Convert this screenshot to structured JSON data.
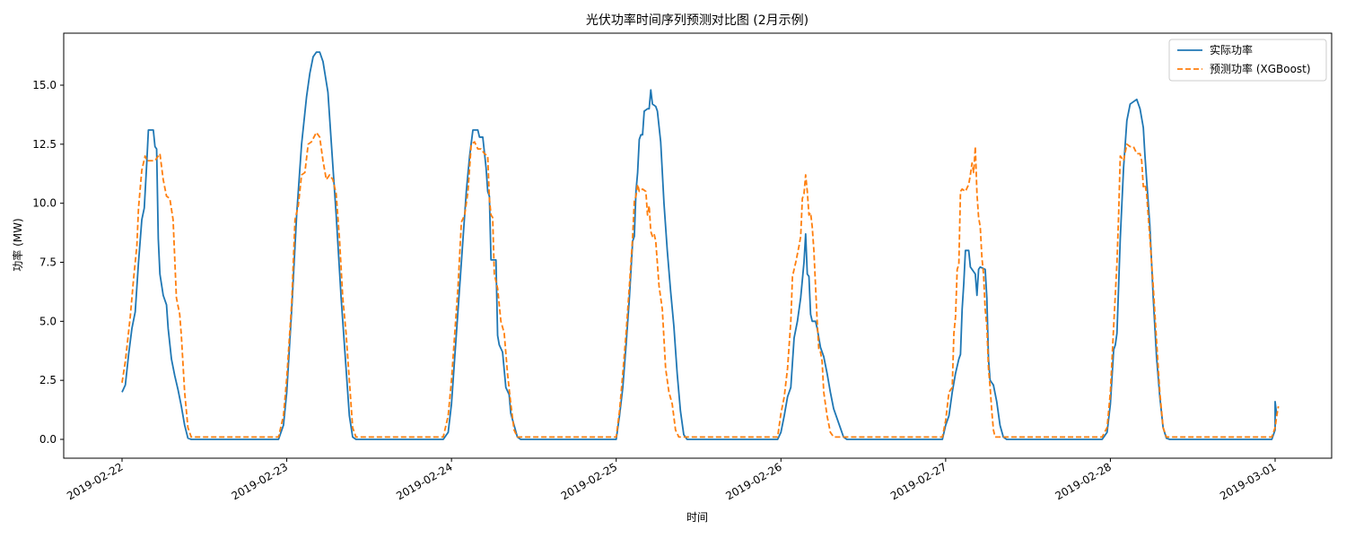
{
  "chart_data": {
    "type": "line",
    "title": "光伏功率时间序列预测对比图 (2月示例)",
    "xlabel": "时间",
    "ylabel": "功率 (MW)",
    "x_ticks": [
      "2019-02-22",
      "2019-02-23",
      "2019-02-24",
      "2019-02-25",
      "2019-02-26",
      "2019-02-27",
      "2019-02-28",
      "2019-03-01"
    ],
    "x_range_days": [
      -0.35,
      7.33
    ],
    "y_ticks": [
      0.0,
      2.5,
      5.0,
      7.5,
      10.0,
      12.5,
      15.0
    ],
    "y_tick_labels": [
      "0.0",
      "2.5",
      "5.0",
      "7.5",
      "10.0",
      "12.5",
      "15.0"
    ],
    "ylim": [
      -0.8,
      17.2
    ],
    "grid": false,
    "legend_position": "upper right",
    "series": [
      {
        "name": "实际功率",
        "color": "#1f77b4",
        "style": "solid",
        "points": [
          [
            0.0,
            2.0
          ],
          [
            0.02,
            2.3
          ],
          [
            0.04,
            3.6
          ],
          [
            0.06,
            4.7
          ],
          [
            0.08,
            5.4
          ],
          [
            0.1,
            7.5
          ],
          [
            0.12,
            9.3
          ],
          [
            0.135,
            9.8
          ],
          [
            0.15,
            11.7
          ],
          [
            0.16,
            13.1
          ],
          [
            0.19,
            13.1
          ],
          [
            0.2,
            12.4
          ],
          [
            0.21,
            12.3
          ],
          [
            0.22,
            8.5
          ],
          [
            0.23,
            7.0
          ],
          [
            0.25,
            6.1
          ],
          [
            0.27,
            5.7
          ],
          [
            0.28,
            4.7
          ],
          [
            0.3,
            3.4
          ],
          [
            0.32,
            2.7
          ],
          [
            0.34,
            2.1
          ],
          [
            0.36,
            1.4
          ],
          [
            0.38,
            0.6
          ],
          [
            0.4,
            0.05
          ],
          [
            0.42,
            0.0
          ],
          [
            0.95,
            0.0
          ],
          [
            0.98,
            0.6
          ],
          [
            1.0,
            2.0
          ],
          [
            1.03,
            5.5
          ],
          [
            1.06,
            9.5
          ],
          [
            1.09,
            12.5
          ],
          [
            1.12,
            14.5
          ],
          [
            1.14,
            15.5
          ],
          [
            1.16,
            16.2
          ],
          [
            1.18,
            16.4
          ],
          [
            1.2,
            16.4
          ],
          [
            1.22,
            16.0
          ],
          [
            1.25,
            14.7
          ],
          [
            1.27,
            12.6
          ],
          [
            1.3,
            9.5
          ],
          [
            1.33,
            6.0
          ],
          [
            1.36,
            3.0
          ],
          [
            1.38,
            1.0
          ],
          [
            1.4,
            0.1
          ],
          [
            1.42,
            0.0
          ],
          [
            1.95,
            0.0
          ],
          [
            1.98,
            0.3
          ],
          [
            2.0,
            1.5
          ],
          [
            2.03,
            4.5
          ],
          [
            2.06,
            7.5
          ],
          [
            2.09,
            10.5
          ],
          [
            2.11,
            12.0
          ],
          [
            2.13,
            13.1
          ],
          [
            2.16,
            13.1
          ],
          [
            2.17,
            12.8
          ],
          [
            2.19,
            12.8
          ],
          [
            2.21,
            11.5
          ],
          [
            2.22,
            10.5
          ],
          [
            2.23,
            10.3
          ],
          [
            2.24,
            7.6
          ],
          [
            2.27,
            7.6
          ],
          [
            2.28,
            4.4
          ],
          [
            2.29,
            4.0
          ],
          [
            2.31,
            3.7
          ],
          [
            2.33,
            2.2
          ],
          [
            2.35,
            1.9
          ],
          [
            2.36,
            1.1
          ],
          [
            2.38,
            0.6
          ],
          [
            2.4,
            0.1
          ],
          [
            2.42,
            0.0
          ],
          [
            0.0,
            0.0
          ]
        ]
      },
      {
        "name": "预测功率 (XGBoost)",
        "color": "#ff7f0e",
        "style": "dashed",
        "points": [
          [
            0.0,
            2.4
          ],
          [
            0.02,
            3.3
          ],
          [
            0.05,
            5.2
          ],
          [
            0.07,
            6.8
          ],
          [
            0.09,
            8.2
          ],
          [
            0.1,
            9.8
          ],
          [
            0.12,
            11.4
          ],
          [
            0.14,
            12.0
          ],
          [
            0.15,
            11.8
          ],
          [
            0.2,
            11.8
          ],
          [
            0.23,
            12.1
          ],
          [
            0.25,
            11.0
          ],
          [
            0.27,
            10.3
          ],
          [
            0.29,
            10.2
          ],
          [
            0.31,
            9.3
          ],
          [
            0.33,
            6.0
          ],
          [
            0.35,
            5.3
          ],
          [
            0.36,
            4.4
          ],
          [
            0.38,
            2.0
          ],
          [
            0.4,
            0.5
          ],
          [
            0.42,
            0.1
          ],
          [
            0.95,
            0.1
          ],
          [
            0.98,
            1.0
          ],
          [
            1.0,
            2.6
          ],
          [
            1.03,
            5.8
          ],
          [
            1.05,
            9.3
          ],
          [
            1.07,
            9.9
          ],
          [
            1.09,
            11.2
          ],
          [
            1.11,
            11.3
          ],
          [
            1.13,
            12.5
          ],
          [
            1.15,
            12.6
          ],
          [
            1.18,
            13.0
          ],
          [
            1.2,
            12.8
          ],
          [
            1.22,
            11.8
          ],
          [
            1.24,
            11.0
          ],
          [
            1.26,
            11.2
          ],
          [
            1.28,
            11.0
          ],
          [
            1.3,
            10.4
          ],
          [
            1.32,
            8.5
          ],
          [
            1.34,
            6.0
          ],
          [
            1.36,
            4.5
          ],
          [
            1.38,
            2.5
          ],
          [
            1.4,
            0.5
          ],
          [
            1.42,
            0.1
          ],
          [
            1.95,
            0.1
          ],
          [
            1.98,
            1.0
          ],
          [
            2.0,
            2.5
          ],
          [
            2.02,
            4.5
          ],
          [
            2.04,
            6.5
          ],
          [
            2.06,
            9.2
          ],
          [
            2.08,
            9.5
          ],
          [
            2.1,
            10.5
          ],
          [
            2.12,
            12.5
          ],
          [
            2.14,
            12.6
          ],
          [
            2.16,
            12.3
          ],
          [
            2.18,
            12.3
          ],
          [
            2.2,
            12.1
          ],
          [
            2.22,
            12.0
          ],
          [
            2.23,
            10.2
          ],
          [
            2.24,
            9.5
          ],
          [
            2.25,
            9.4
          ],
          [
            2.26,
            7.0
          ],
          [
            2.28,
            6.4
          ],
          [
            2.3,
            5.0
          ],
          [
            2.32,
            4.5
          ],
          [
            2.34,
            2.8
          ],
          [
            2.36,
            1.5
          ],
          [
            2.38,
            0.4
          ],
          [
            2.4,
            0.1
          ],
          [
            0.0,
            0.0
          ]
        ]
      }
    ]
  },
  "legend": {
    "items": [
      {
        "label": "实际功率",
        "color": "#1f77b4",
        "style": "solid"
      },
      {
        "label": "预测功率 (XGBoost)",
        "color": "#ff7f0e",
        "style": "dashed"
      }
    ]
  }
}
